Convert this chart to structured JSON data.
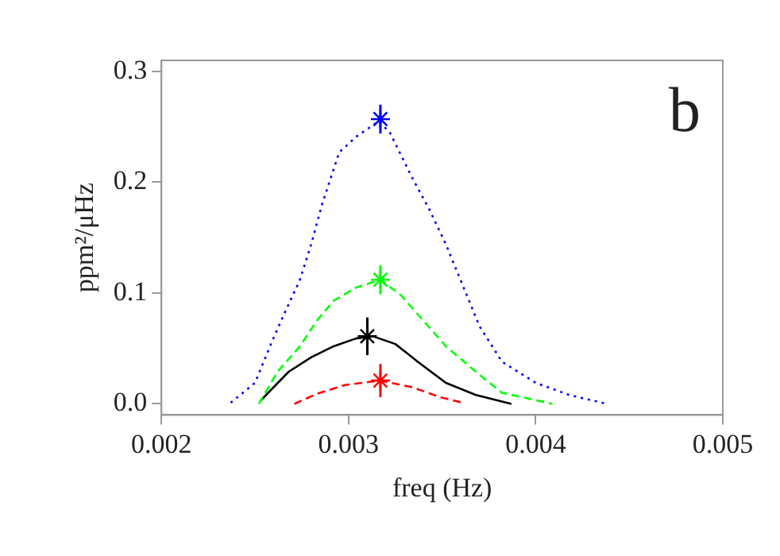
{
  "chart_data": {
    "type": "line",
    "xlabel": "freq (Hz)",
    "ylabel": "ppm²/μHz",
    "annotations": [
      "b"
    ],
    "xlim": [
      0.002,
      0.005
    ],
    "ylim": [
      -0.01,
      0.31
    ],
    "xticks": [
      {
        "value": 0.002,
        "label": "0.002"
      },
      {
        "value": 0.003,
        "label": "0.003"
      },
      {
        "value": 0.004,
        "label": "0.004"
      },
      {
        "value": 0.005,
        "label": "0.005"
      }
    ],
    "yticks": [
      {
        "value": 0,
        "label": "0.0"
      },
      {
        "value": 0.1,
        "label": "0.1"
      },
      {
        "value": 0.2,
        "label": "0.2"
      },
      {
        "value": 0.3,
        "label": "0.3"
      }
    ],
    "grid": false,
    "legend": false,
    "series": [
      {
        "color": "#0000ff",
        "line_style": "dotted",
        "marker": "none",
        "x": [
          0.00237,
          0.0025,
          0.00259,
          0.00265,
          0.00274,
          0.0028,
          0.00286,
          0.00295,
          0.00304,
          0.00316,
          0.00322,
          0.00334,
          0.00343,
          0.00352,
          0.00361,
          0.0037,
          0.00382,
          0.004,
          0.00418,
          0.00438
        ],
        "values": [
          0.001,
          0.019,
          0.056,
          0.079,
          0.112,
          0.144,
          0.181,
          0.227,
          0.241,
          0.255,
          0.245,
          0.204,
          0.176,
          0.144,
          0.107,
          0.07,
          0.038,
          0.019,
          0.008,
          0.0
        ]
      },
      {
        "color": "#00ff00",
        "line_style": "dashed",
        "marker": "none",
        "x": [
          0.00252,
          0.00262,
          0.00274,
          0.00283,
          0.00292,
          0.00304,
          0.00317,
          0.00328,
          0.0034,
          0.00352,
          0.00368,
          0.00382,
          0.00409
        ],
        "values": [
          0.0,
          0.029,
          0.052,
          0.075,
          0.093,
          0.105,
          0.112,
          0.098,
          0.075,
          0.052,
          0.029,
          0.01,
          0.0
        ]
      },
      {
        "color": "#000000",
        "line_style": "solid",
        "marker": "none",
        "x": [
          0.00253,
          0.00268,
          0.0028,
          0.00292,
          0.00304,
          0.00313,
          0.00325,
          0.00337,
          0.00352,
          0.00368,
          0.00387
        ],
        "values": [
          0.003,
          0.029,
          0.042,
          0.052,
          0.059,
          0.061,
          0.054,
          0.038,
          0.019,
          0.008,
          0.0
        ]
      },
      {
        "color": "#ff0000",
        "line_style": "dashed",
        "marker": "none",
        "x": [
          0.00271,
          0.00283,
          0.00298,
          0.00317,
          0.00334,
          0.00349,
          0.00361
        ],
        "values": [
          0.0,
          0.009,
          0.017,
          0.021,
          0.015,
          0.006,
          0.001
        ]
      },
      {
        "type": "scatter",
        "marker": "cross",
        "colors": [
          "#0000ff",
          "#00ff00",
          "#000000",
          "#ff0000"
        ],
        "x": [
          0.00317,
          0.00317,
          0.0031,
          0.00317
        ],
        "values": [
          0.257,
          0.112,
          0.061,
          0.021
        ],
        "errors": [
          0.013,
          0.013,
          0.017,
          0.015
        ]
      }
    ]
  }
}
